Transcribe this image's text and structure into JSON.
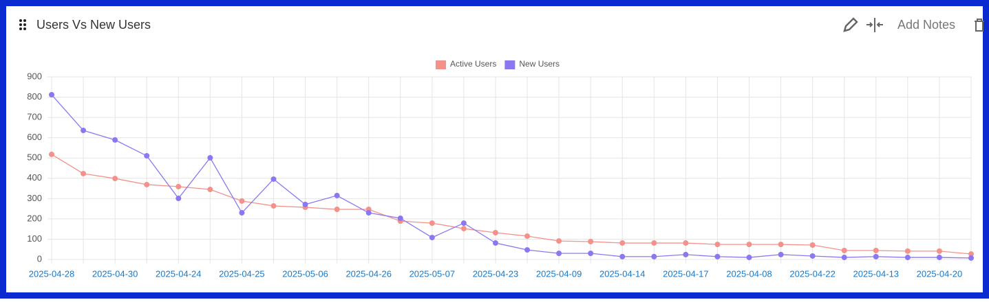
{
  "chart_data": {
    "type": "line",
    "title": "Users Vs New Users",
    "categories": [
      "2025-04-28",
      null,
      "2025-04-30",
      null,
      "2025-04-24",
      null,
      "2025-04-25",
      null,
      "2025-05-06",
      null,
      "2025-04-26",
      null,
      "2025-05-07",
      null,
      "2025-04-23",
      null,
      "2025-04-09",
      null,
      "2025-04-14",
      null,
      "2025-04-17",
      null,
      "2025-04-08",
      null,
      "2025-04-22",
      null,
      "2025-04-13",
      null,
      "2025-04-20",
      null
    ],
    "series": [
      {
        "name": "Active Users",
        "color": "#f4918a",
        "values": [
          518,
          423,
          399,
          369,
          359,
          345,
          288,
          264,
          257,
          247,
          247,
          189,
          179,
          152,
          132,
          115,
          91,
          88,
          81,
          81,
          81,
          74,
          74,
          74,
          71,
          44,
          44,
          41,
          41,
          27
        ]
      },
      {
        "name": "New Users",
        "color": "#8a78f0",
        "values": [
          812,
          636,
          589,
          511,
          301,
          501,
          230,
          396,
          271,
          315,
          230,
          203,
          108,
          179,
          81,
          47,
          30,
          30,
          14,
          14,
          24,
          14,
          10,
          24,
          17,
          10,
          14,
          10,
          10,
          7
        ]
      }
    ],
    "ylim": [
      0,
      900
    ],
    "yticks": [
      0,
      100,
      200,
      300,
      400,
      500,
      600,
      700,
      800,
      900
    ],
    "grid": true,
    "legend": "top"
  },
  "toolbar": {
    "add_notes": "Add Notes"
  }
}
